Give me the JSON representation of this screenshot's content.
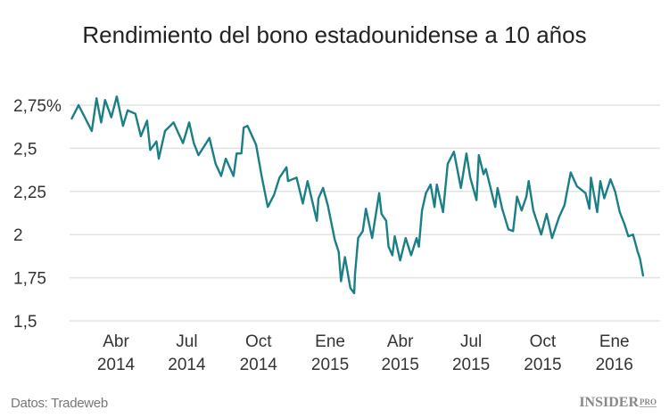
{
  "title": "Rendimiento del bono estadounidense a 10 años",
  "source": "Datos: Tradeweb",
  "logo": {
    "main": "INSIDER",
    "sub": "PRO"
  },
  "colors": {
    "line": "#1a7f86",
    "grid": "#e3e3e3",
    "text": "#333333"
  },
  "chart_data": {
    "type": "line",
    "title": "Rendimiento del bono estadounidense a 10 años",
    "xlabel": "",
    "ylabel": "",
    "ylim": [
      1.5,
      2.75
    ],
    "grid": true,
    "yticks": [
      {
        "value": 2.75,
        "label": "2,75%"
      },
      {
        "value": 2.5,
        "label": "2,5"
      },
      {
        "value": 2.25,
        "label": "2,25"
      },
      {
        "value": 2.0,
        "label": "2"
      },
      {
        "value": 1.75,
        "label": "1,75"
      },
      {
        "value": 1.5,
        "label": "1,5"
      }
    ],
    "xticks": [
      {
        "date": "2014-04-01",
        "month": "Abr",
        "year": "2014"
      },
      {
        "date": "2014-07-01",
        "month": "Jul",
        "year": "2014"
      },
      {
        "date": "2014-10-01",
        "month": "Oct",
        "year": "2014"
      },
      {
        "date": "2015-01-01",
        "month": "Ene",
        "year": "2015"
      },
      {
        "date": "2015-04-01",
        "month": "Abr",
        "year": "2015"
      },
      {
        "date": "2015-07-01",
        "month": "Jul",
        "year": "2015"
      },
      {
        "date": "2015-10-01",
        "month": "Oct",
        "year": "2015"
      },
      {
        "date": "2016-01-01",
        "month": "Ene",
        "year": "2016"
      }
    ],
    "series": [
      {
        "points": [
          [
            "2014-02-03",
            2.67
          ],
          [
            "2014-02-12",
            2.75
          ],
          [
            "2014-03-01",
            2.6
          ],
          [
            "2014-03-07",
            2.79
          ],
          [
            "2014-03-13",
            2.65
          ],
          [
            "2014-03-18",
            2.78
          ],
          [
            "2014-03-26",
            2.68
          ],
          [
            "2014-04-02",
            2.8
          ],
          [
            "2014-04-10",
            2.63
          ],
          [
            "2014-04-16",
            2.72
          ],
          [
            "2014-04-26",
            2.7
          ],
          [
            "2014-05-03",
            2.57
          ],
          [
            "2014-05-11",
            2.66
          ],
          [
            "2014-05-15",
            2.49
          ],
          [
            "2014-05-23",
            2.54
          ],
          [
            "2014-05-26",
            2.44
          ],
          [
            "2014-06-03",
            2.6
          ],
          [
            "2014-06-14",
            2.65
          ],
          [
            "2014-06-26",
            2.53
          ],
          [
            "2014-07-04",
            2.65
          ],
          [
            "2014-07-10",
            2.53
          ],
          [
            "2014-07-16",
            2.46
          ],
          [
            "2014-07-30",
            2.56
          ],
          [
            "2014-08-07",
            2.41
          ],
          [
            "2014-08-14",
            2.34
          ],
          [
            "2014-08-20",
            2.44
          ],
          [
            "2014-08-30",
            2.34
          ],
          [
            "2014-09-03",
            2.47
          ],
          [
            "2014-09-09",
            2.47
          ],
          [
            "2014-09-12",
            2.62
          ],
          [
            "2014-09-17",
            2.63
          ],
          [
            "2014-09-28",
            2.52
          ],
          [
            "2014-10-05",
            2.34
          ],
          [
            "2014-10-13",
            2.16
          ],
          [
            "2014-10-21",
            2.23
          ],
          [
            "2014-10-28",
            2.33
          ],
          [
            "2014-11-06",
            2.39
          ],
          [
            "2014-11-08",
            2.31
          ],
          [
            "2014-11-19",
            2.33
          ],
          [
            "2014-11-27",
            2.18
          ],
          [
            "2014-12-03",
            2.31
          ],
          [
            "2014-12-15",
            2.08
          ],
          [
            "2014-12-17",
            2.21
          ],
          [
            "2014-12-23",
            2.27
          ],
          [
            "2014-12-29",
            2.17
          ],
          [
            "2015-01-07",
            1.97
          ],
          [
            "2015-01-12",
            1.9
          ],
          [
            "2015-01-15",
            1.73
          ],
          [
            "2015-01-20",
            1.87
          ],
          [
            "2015-01-27",
            1.69
          ],
          [
            "2015-02-01",
            1.66
          ],
          [
            "2015-02-02",
            1.77
          ],
          [
            "2015-02-06",
            1.98
          ],
          [
            "2015-02-12",
            2.02
          ],
          [
            "2015-02-16",
            2.15
          ],
          [
            "2015-02-24",
            1.98
          ],
          [
            "2015-03-05",
            2.24
          ],
          [
            "2015-03-08",
            2.12
          ],
          [
            "2015-03-14",
            2.08
          ],
          [
            "2015-03-17",
            1.93
          ],
          [
            "2015-03-22",
            1.88
          ],
          [
            "2015-03-25",
            1.99
          ],
          [
            "2015-04-01",
            1.85
          ],
          [
            "2015-04-08",
            1.98
          ],
          [
            "2015-04-15",
            1.88
          ],
          [
            "2015-04-22",
            1.98
          ],
          [
            "2015-04-25",
            1.93
          ],
          [
            "2015-04-29",
            2.14
          ],
          [
            "2015-05-04",
            2.24
          ],
          [
            "2015-05-10",
            2.29
          ],
          [
            "2015-05-15",
            2.16
          ],
          [
            "2015-05-18",
            2.29
          ],
          [
            "2015-05-26",
            2.13
          ],
          [
            "2015-06-01",
            2.41
          ],
          [
            "2015-06-09",
            2.48
          ],
          [
            "2015-06-18",
            2.27
          ],
          [
            "2015-06-25",
            2.47
          ],
          [
            "2015-06-30",
            2.33
          ],
          [
            "2015-07-08",
            2.2
          ],
          [
            "2015-07-11",
            2.46
          ],
          [
            "2015-07-17",
            2.35
          ],
          [
            "2015-07-20",
            2.38
          ],
          [
            "2015-08-01",
            2.16
          ],
          [
            "2015-08-04",
            2.27
          ],
          [
            "2015-08-10",
            2.15
          ],
          [
            "2015-08-18",
            2.03
          ],
          [
            "2015-08-24",
            2.02
          ],
          [
            "2015-08-29",
            2.22
          ],
          [
            "2015-09-04",
            2.14
          ],
          [
            "2015-09-10",
            2.22
          ],
          [
            "2015-09-13",
            2.31
          ],
          [
            "2015-09-19",
            2.14
          ],
          [
            "2015-09-29",
            2.0
          ],
          [
            "2015-10-06",
            2.12
          ],
          [
            "2015-10-13",
            1.98
          ],
          [
            "2015-10-22",
            2.1
          ],
          [
            "2015-10-29",
            2.17
          ],
          [
            "2015-11-06",
            2.36
          ],
          [
            "2015-11-14",
            2.28
          ],
          [
            "2015-11-25",
            2.24
          ],
          [
            "2015-11-30",
            2.15
          ],
          [
            "2015-12-02",
            2.33
          ],
          [
            "2015-12-10",
            2.13
          ],
          [
            "2015-12-14",
            2.31
          ],
          [
            "2015-12-19",
            2.21
          ],
          [
            "2015-12-27",
            2.32
          ],
          [
            "2016-01-02",
            2.25
          ],
          [
            "2016-01-08",
            2.13
          ],
          [
            "2016-01-14",
            2.06
          ],
          [
            "2016-01-19",
            1.99
          ],
          [
            "2016-01-25",
            2.0
          ],
          [
            "2016-01-31",
            1.9
          ],
          [
            "2016-02-03",
            1.86
          ],
          [
            "2016-02-07",
            1.76
          ]
        ]
      }
    ]
  }
}
